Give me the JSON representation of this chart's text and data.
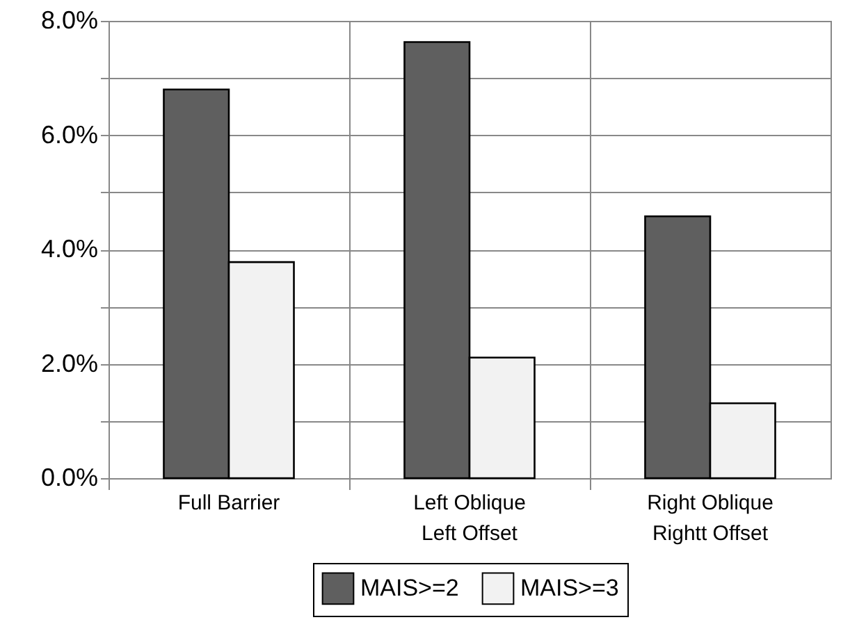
{
  "chart_data": {
    "type": "bar",
    "categories": [
      "Full Barrier",
      "Left Oblique\nLeft Offset",
      "Right Oblique\nRightt Offset"
    ],
    "series": [
      {
        "name": "MAIS>=2",
        "color": "#5f5f5f",
        "values": [
          6.8,
          7.63,
          4.58
        ]
      },
      {
        "name": "MAIS>=3",
        "color": "#f2f2f2",
        "values": [
          3.78,
          2.11,
          1.31
        ]
      }
    ],
    "ylim": [
      0,
      8
    ],
    "yticks": [
      {
        "value": 0,
        "label": "0.0%"
      },
      {
        "value": 1,
        "label": null
      },
      {
        "value": 2,
        "label": "2.0%"
      },
      {
        "value": 3,
        "label": null
      },
      {
        "value": 4,
        "label": "4.0%"
      },
      {
        "value": 5,
        "label": null
      },
      {
        "value": 6,
        "label": "6.0%"
      },
      {
        "value": 7,
        "label": null
      },
      {
        "value": 8,
        "label": "8.0%"
      }
    ],
    "grid": true,
    "legend": "bottom"
  }
}
